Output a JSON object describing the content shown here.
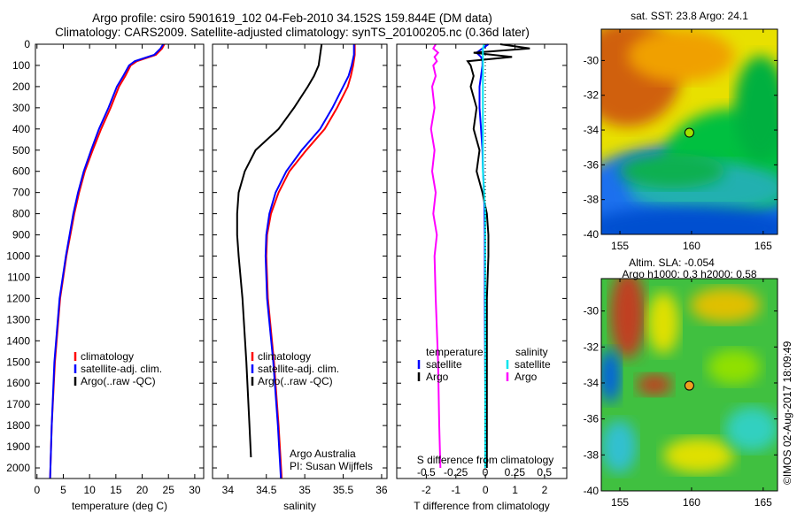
{
  "title_line1": "Argo profile: csiro 5901619_102 04-Feb-2010 34.152S 159.844E (DM data)",
  "title_line2": "Climatology: CARS2009. Satellite-adjusted climatology: synTS_20100205.nc (0.36d later)",
  "credit": "©IMOS 02-Aug-2017 18:09:49",
  "colors": {
    "climatology": "#ff0000",
    "satellite": "#0000ff",
    "argo": "#000000",
    "sat_s": "#00e5ee",
    "argo_s": "#ff00ff"
  },
  "chart_data": [
    {
      "type": "line",
      "name": "temperature",
      "xlabel": "temperature (deg C)",
      "xlim": [
        -0.3,
        31.7
      ],
      "ylim": [
        0,
        2050
      ],
      "xticks": [
        "0",
        "5",
        "10",
        "15",
        "20",
        "25",
        "30"
      ],
      "xtickvals": [
        0,
        5,
        10,
        15,
        20,
        25,
        30
      ],
      "yticks": [
        "0",
        "100",
        "200",
        "300",
        "400",
        "500",
        "600",
        "700",
        "800",
        "900",
        "1000",
        "1100",
        "1200",
        "1300",
        "1400",
        "1500",
        "1600",
        "1700",
        "1800",
        "1900",
        "2000"
      ],
      "depth": [
        0,
        20,
        50,
        80,
        100,
        150,
        200,
        300,
        400,
        500,
        600,
        700,
        800,
        1000,
        1200,
        1500,
        1800,
        2050
      ],
      "series": [
        {
          "name": "climatology",
          "color": "#ff0000",
          "values": [
            24.2,
            23.8,
            22.6,
            19,
            17.8,
            16.8,
            15.6,
            14.0,
            12.2,
            10.6,
            9.1,
            8.0,
            7.1,
            5.6,
            4.4,
            3.4,
            2.8,
            2.5
          ]
        },
        {
          "name": "satellite-adj. clim.",
          "color": "#0000ff",
          "values": [
            24.0,
            23.5,
            22.3,
            18.6,
            17.5,
            16.4,
            15.2,
            13.6,
            11.8,
            10.3,
            8.9,
            7.8,
            6.9,
            5.5,
            4.3,
            3.3,
            2.8,
            2.5
          ]
        }
      ],
      "legend": [
        "climatology",
        "satellite-adj. clim.",
        "Argo(..raw -QC)"
      ]
    },
    {
      "type": "line",
      "name": "salinity",
      "xlabel": "salinity",
      "xlim": [
        33.8,
        36.07
      ],
      "ylim": [
        0,
        2050
      ],
      "xticks": [
        "34",
        "34.5",
        "35",
        "35.5",
        "36"
      ],
      "xtickvals": [
        34,
        34.5,
        35,
        35.5,
        36
      ],
      "depth": [
        0,
        50,
        100,
        150,
        200,
        300,
        400,
        500,
        600,
        700,
        800,
        900,
        1000,
        1200,
        1500,
        1800,
        2050
      ],
      "series": [
        {
          "name": "climatology",
          "color": "#ff0000",
          "values": [
            35.65,
            35.65,
            35.63,
            35.6,
            35.56,
            35.42,
            35.26,
            35.02,
            34.8,
            34.66,
            34.56,
            34.51,
            34.5,
            34.52,
            34.6,
            34.66,
            34.7
          ]
        },
        {
          "name": "satellite-adj. clim.",
          "color": "#0000ff",
          "values": [
            35.64,
            35.64,
            35.61,
            35.57,
            35.5,
            35.36,
            35.2,
            34.96,
            34.76,
            34.62,
            34.54,
            34.5,
            34.49,
            34.51,
            34.59,
            34.65,
            34.69
          ]
        },
        {
          "name": "Argo",
          "color": "#000000",
          "values": [
            35.22,
            35.2,
            35.18,
            35.12,
            35.04,
            34.86,
            34.66,
            34.36,
            34.22,
            34.14,
            34.12,
            34.12,
            34.14,
            34.19,
            34.24,
            34.28,
            null
          ]
        }
      ],
      "legend": [
        "climatology",
        "satellite-adj. clim.",
        "Argo(..raw -QC)"
      ],
      "annotation": [
        "Argo Australia",
        "PI: Susan Wijffels"
      ]
    },
    {
      "type": "line",
      "name": "differences",
      "xlabel": "T difference from climatology",
      "x2label": "S difference from climatology",
      "xlim": [
        -3.0,
        2.75
      ],
      "x2lim": [
        -0.75,
        0.69
      ],
      "xticks": [
        "-2",
        "-1",
        "0",
        "1",
        "2"
      ],
      "xtickvals": [
        -2,
        -1,
        0,
        1,
        2
      ],
      "x2ticks": [
        "-0.5",
        "-0.25",
        "0",
        "0.25",
        "0.5"
      ],
      "x2tickvals": [
        -0.5,
        -0.25,
        0,
        0.25,
        0.5
      ],
      "depth": [
        0,
        20,
        40,
        60,
        80,
        100,
        150,
        200,
        300,
        400,
        500,
        600,
        700,
        800,
        900,
        1000,
        1200,
        1500,
        1800,
        2000
      ],
      "series": [
        {
          "name": "temperature satellite",
          "color": "#0000ff",
          "axis": "T",
          "values": [
            0.1,
            -0.1,
            -0.3,
            -0.15,
            -0.1,
            -0.1,
            -0.15,
            -0.2,
            -0.2,
            -0.15,
            -0.1,
            -0.08,
            -0.05,
            -0.03,
            -0.02,
            -0.02,
            -0.02,
            -0.01,
            0,
            0
          ]
        },
        {
          "name": "temperature Argo",
          "color": "#000000",
          "axis": "T",
          "values": [
            0.5,
            1.5,
            -0.4,
            0.9,
            -0.6,
            -0.5,
            -0.4,
            -0.5,
            -0.3,
            -0.4,
            -0.2,
            -0.3,
            -0.1,
            0.05,
            0.1,
            0.1,
            0.05,
            0.05,
            0.05,
            0.05
          ]
        },
        {
          "name": "salinity satellite",
          "color": "#00e5ee",
          "axis": "S",
          "values": [
            -0.01,
            -0.02,
            -0.02,
            -0.02,
            -0.02,
            -0.02,
            -0.02,
            -0.02,
            -0.02,
            -0.02,
            -0.02,
            -0.02,
            -0.01,
            0,
            0,
            0,
            0,
            0,
            0,
            0
          ]
        },
        {
          "name": "salinity Argo",
          "color": "#ff00ff",
          "axis": "S",
          "values": [
            -0.42,
            -0.44,
            -0.4,
            -0.43,
            -0.41,
            -0.44,
            -0.42,
            -0.45,
            -0.43,
            -0.46,
            -0.43,
            -0.45,
            -0.42,
            -0.44,
            -0.41,
            -0.43,
            -0.42,
            -0.4,
            -0.39,
            -0.38
          ]
        }
      ],
      "legend": {
        "temperature_title": "temperature",
        "salinity_title": "salinity",
        "satellite": "satellite",
        "argo": "Argo"
      }
    }
  ],
  "maps": [
    {
      "title": "sat. SST: 23.8 Argo: 24.1",
      "xticks": [
        "155",
        "160",
        "165"
      ],
      "yticks": [
        "-30",
        "-32",
        "-34",
        "-36",
        "-38",
        "-40"
      ],
      "float_lon": 159.844,
      "float_lat": -34.152
    },
    {
      "title1": "Altim. SLA: -0.054",
      "title2": "Argo h1000: 0.3 h2000: 0.58",
      "xticks": [
        "155",
        "160",
        "165"
      ],
      "yticks": [
        "-30",
        "-32",
        "-34",
        "-36",
        "-38",
        "-40"
      ],
      "float_lon": 159.844,
      "float_lat": -34.152
    }
  ]
}
